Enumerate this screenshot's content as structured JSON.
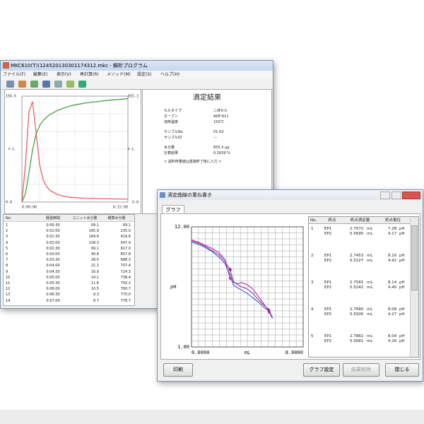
{
  "back_window": {
    "title": "MKC610(T)(124520130301174312.mkc - 解析プログラム",
    "menu": [
      "ファイル(F)",
      "編集(E)",
      "表示(V)",
      "再計算(R)",
      "メソッド(M)",
      "設定(S)",
      "ヘルプ(H)"
    ],
    "graph": {
      "ylim": [
        {
          "value": 0,
          "label": "0.0"
        },
        194.6
      ],
      "y2lim": [
        {
          "value": 0,
          "label": "0.0"
        },
        855.3
      ],
      "xlim": [
        {
          "value": 0,
          "label": "0:00:00"
        },
        {
          "value": 15,
          "label": "0:15:00"
        }
      ],
      "y_side_label": "P.E.",
      "y2_side_label": "P.E.",
      "series": [
        {
          "color": "#e8606a",
          "axis": "y",
          "x": [
            0,
            0.5,
            1,
            1.5,
            2,
            2.5,
            3,
            3.5,
            4,
            5,
            6,
            7,
            9,
            12,
            15
          ],
          "y": [
            0,
            69.1,
            165.9,
            184.6,
            128.3,
            69.1,
            40.8,
            28.5,
            21.1,
            14.1,
            10.5,
            8.7,
            7,
            6,
            5.5
          ]
        },
        {
          "color": "#4aa04a",
          "axis": "y2",
          "x": [
            0,
            0.5,
            1,
            1.5,
            2,
            2.5,
            3,
            3.5,
            4,
            5,
            6,
            7,
            9,
            12,
            15
          ],
          "y": [
            0,
            69.1,
            235.0,
            419.6,
            547.9,
            617.0,
            657.8,
            686.3,
            707.4,
            738.4,
            760.7,
            778.7,
            800,
            820,
            835
          ]
        }
      ]
    },
    "result": {
      "title": "滴定結果",
      "rows": [
        [
          "セルタイプ",
          "二液セル"
        ],
        [
          "オーブン",
          "ADP-611"
        ],
        [
          "加熱温度",
          "150℃"
        ],
        [
          "サンプルNo.",
          "01-03"
        ],
        [
          "サンプルID",
          "---"
        ],
        [
          "水分量",
          "655.3 μg"
        ],
        [
          "計算結果",
          "0.2639 %"
        ]
      ],
      "note": "< 試料秤量値は直接終了後に入力 >"
    },
    "table": {
      "headers": [
        "No.",
        "経過時間",
        "ユニット水分量",
        "積算水分量"
      ],
      "rows": [
        [
          "1",
          "0:00:30",
          "69.1",
          "69.1"
        ],
        [
          "2",
          "0:01:00",
          "165.9",
          "235.0"
        ],
        [
          "3",
          "0:01:30",
          "184.6",
          "419.6"
        ],
        [
          "4",
          "0:02:00",
          "128.3",
          "547.9"
        ],
        [
          "5",
          "0:02:30",
          "69.1",
          "617.0"
        ],
        [
          "6",
          "0:03:00",
          "40.8",
          "657.8"
        ],
        [
          "7",
          "0:03:30",
          "28.5",
          "686.3"
        ],
        [
          "8",
          "0:04:00",
          "21.1",
          "707.4"
        ],
        [
          "9",
          "0:04:30",
          "16.9",
          "724.3"
        ],
        [
          "10",
          "0:05:00",
          "14.1",
          "738.4"
        ],
        [
          "11",
          "0:05:30",
          "11.8",
          "750.2"
        ],
        [
          "12",
          "0:06:00",
          "10.5",
          "760.7"
        ],
        [
          "13",
          "0:06:30",
          "9.3",
          "770.0"
        ],
        [
          "14",
          "0:07:00",
          "8.7",
          "778.7"
        ]
      ]
    }
  },
  "front_window": {
    "title": "滴定曲線の重ね書き",
    "tab": "グラフ",
    "graph": {
      "xlim": [
        {
          "value": 0,
          "label": "0.0000"
        },
        {
          "value": 8,
          "label": "8.0000"
        }
      ],
      "ylim": [
        {
          "value": 1,
          "label": "1.00"
        },
        {
          "value": 12,
          "label": "12.00"
        }
      ],
      "xlabel": "mL",
      "ylabel": "pH",
      "series": [
        {
          "color": "#c0208a",
          "x": [
            0,
            0.5,
            1,
            1.5,
            2,
            2.4,
            2.76,
            3.0,
            3.3,
            3.6,
            4.0,
            4.4,
            4.8,
            5.2,
            5.57,
            5.8
          ],
          "y": [
            10.8,
            10.6,
            10.3,
            10.0,
            9.6,
            9.0,
            7.3,
            6.9,
            6.8,
            6.9,
            6.7,
            6.3,
            5.6,
            4.9,
            4.2,
            3.6
          ]
        },
        {
          "color": "#7a3fa8",
          "x": [
            0,
            0.5,
            1,
            1.5,
            2,
            2.4,
            2.76,
            3.0,
            3.3,
            3.6,
            4.0,
            4.4,
            4.8,
            5.2,
            5.55,
            5.75
          ],
          "y": [
            10.7,
            10.5,
            10.2,
            9.8,
            9.4,
            8.8,
            8.1,
            7.0,
            6.7,
            6.5,
            6.3,
            5.9,
            5.3,
            4.8,
            4.4,
            3.8
          ]
        },
        {
          "color": "#4060c8",
          "x": [
            0,
            0.5,
            1,
            1.5,
            2,
            2.4,
            2.78,
            3.0,
            3.3,
            3.6,
            4.0,
            4.4,
            4.8,
            5.2,
            5.57,
            5.8
          ],
          "y": [
            10.6,
            10.4,
            10.1,
            9.7,
            9.2,
            8.6,
            7.6,
            6.7,
            6.4,
            6.2,
            5.9,
            5.5,
            5.1,
            4.6,
            4.3,
            3.7
          ]
        }
      ]
    },
    "table": {
      "headers": [
        "No.",
        "終点",
        "終点滴定量",
        "終点電位"
      ],
      "unit_volume": "mL",
      "unit_potential": "pH",
      "rows": [
        {
          "no": "1",
          "points": [
            {
              "name": "EP1",
              "volume": {
                "value": 2.7572,
                "label": "2.7572"
              },
              "potential": {
                "value": 7.28,
                "label": "7.28"
              }
            },
            {
              "name": "EP2",
              "volume": {
                "value": 5.5695,
                "label": "5.5695"
              },
              "potential": {
                "value": 4.17,
                "label": "4.17"
              }
            }
          ]
        },
        {
          "no": "2",
          "points": [
            {
              "name": "EP1",
              "volume": {
                "value": 2.7453,
                "label": "2.7453"
              },
              "potential": {
                "value": 8.1,
                "label": "8.10"
              }
            },
            {
              "name": "EP2",
              "volume": {
                "value": 5.5227,
                "label": "5.5227"
              },
              "potential": {
                "value": 4.42,
                "label": "4.42"
              }
            }
          ]
        },
        {
          "no": "3",
          "points": [
            {
              "name": "EP1",
              "volume": {
                "value": 2.7565,
                "label": "2.7565"
              },
              "potential": {
                "value": 8.14,
                "label": "8.14"
              }
            },
            {
              "name": "EP2",
              "volume": {
                "value": 5.5242,
                "label": "5.5242"
              },
              "potential": {
                "value": 4.4,
                "label": "4.40"
              }
            }
          ]
        },
        {
          "no": "4",
          "points": [
            {
              "name": "EP1",
              "volume": {
                "value": 2.768,
                "label": "2.7680"
              },
              "potential": {
                "value": 8.08,
                "label": "8.08"
              }
            },
            {
              "name": "EP2",
              "volume": {
                "value": 5.5506,
                "label": "5.5506"
              },
              "potential": {
                "value": 4.27,
                "label": "4.27"
              }
            }
          ]
        },
        {
          "no": "5",
          "points": [
            {
              "name": "EP1",
              "volume": {
                "value": 2.7882,
                "label": "2.7882"
              },
              "potential": {
                "value": 8.04,
                "label": "8.04"
              }
            },
            {
              "name": "EP2",
              "volume": {
                "value": 5.5681,
                "label": "5.5681"
              },
              "potential": {
                "value": 4.26,
                "label": "4.26"
              }
            }
          ]
        }
      ]
    },
    "buttons": [
      "印刷",
      "グラフ設定",
      "結果削除",
      "閉じる"
    ]
  }
}
